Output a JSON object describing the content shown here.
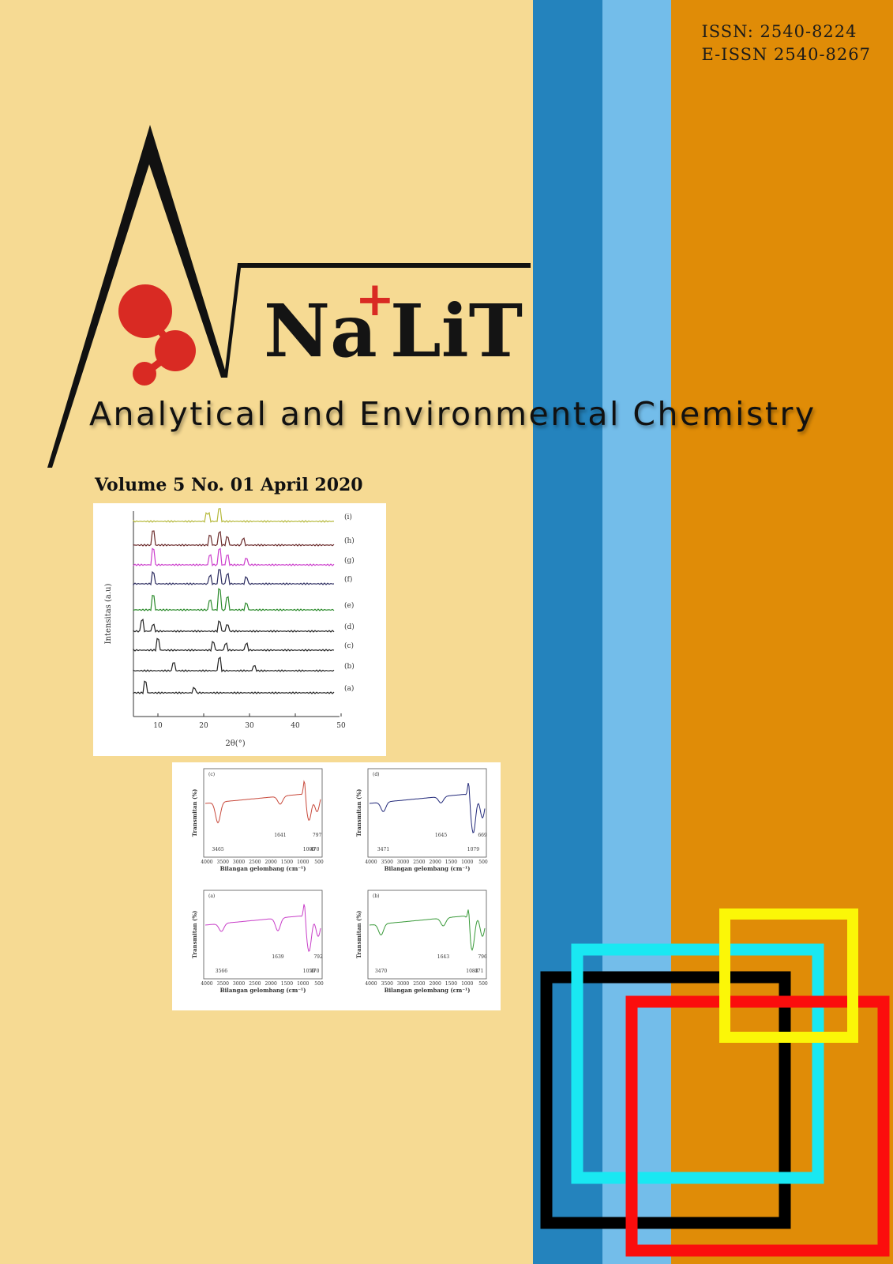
{
  "issn": {
    "print": "ISSN: 2540-8224",
    "electronic": "E-ISSN 2540-8267"
  },
  "logo": {
    "name_part1": "Na",
    "plus_sign": "+",
    "name_part2": "LiT"
  },
  "subtitle": "Analytical and Environmental Chemistry",
  "volume": "Volume 5 No. 01 April 2020",
  "colors": {
    "background": "#f6da93",
    "stripe_dark_blue": "#2483bd",
    "stripe_light_blue": "#73bdea",
    "stripe_orange": "#e08c07",
    "logo_red": "#d92a23",
    "square_black": "#000000",
    "square_cyan": "#19e8f2",
    "square_yellow": "#fbf707",
    "square_red": "#fb0d0d"
  },
  "xrd_figure": {
    "y_label": "Intensitas (a.u)",
    "x_label": "2θ(°)",
    "x_ticks": [
      "10",
      "20",
      "30",
      "40",
      "50"
    ],
    "trace_labels": [
      "(i)",
      "(h)",
      "(g)",
      "(f)",
      "(e)",
      "(d)",
      "(c)",
      "(b)",
      "(a)"
    ],
    "trace_colors": [
      "#b5b83a",
      "#6b2b2b",
      "#cc3fcc",
      "#2a2a5e",
      "#2a8a2a",
      "#222222",
      "#222222",
      "#222222",
      "#222222"
    ]
  },
  "ftir_figure": {
    "x_label": "Bilangan gelombang (cm⁻¹)",
    "y_label": "Transmitan (%)",
    "x_ticks": [
      "4000",
      "3500",
      "3000",
      "2500",
      "2000",
      "1500",
      "1000",
      "500"
    ],
    "panels": [
      {
        "label": "(c)",
        "color": "#c8493b",
        "peaks": [
          "3465",
          "1641",
          "1000",
          "797",
          "470"
        ]
      },
      {
        "label": "(d)",
        "color": "#232a7a",
        "peaks": [
          "3471",
          "1645",
          "1079",
          "669"
        ]
      },
      {
        "label": "(a)",
        "color": "#c83fc8",
        "peaks": [
          "3566",
          "1639",
          "1059",
          "792",
          "470"
        ]
      },
      {
        "label": "(b)",
        "color": "#3a9a3a",
        "peaks": [
          "3470",
          "1643",
          "1083",
          "796",
          "471"
        ]
      }
    ]
  }
}
